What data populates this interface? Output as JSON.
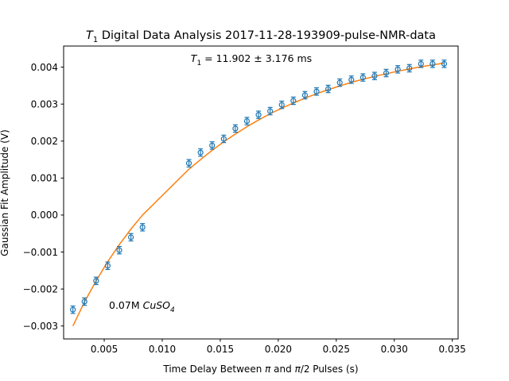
{
  "chart_data": {
    "type": "scatter",
    "title_prefix": "T",
    "title_sub": "1",
    "title_rest": " Digital Data Analysis 2017-11-28-193909-pulse-NMR-data",
    "xlabel_parts": [
      "Time Delay Between ",
      "π",
      " and ",
      "π",
      "/2 Pulses (s)"
    ],
    "ylabel": "Gaussian Fit Amplitude (V)",
    "xlim": [
      0.0015,
      0.0355
    ],
    "ylim": [
      -0.00335,
      0.00457
    ],
    "xticks": [
      0.005,
      0.01,
      0.015,
      0.02,
      0.025,
      0.03,
      0.035
    ],
    "xtick_labels": [
      "0.005",
      "0.010",
      "0.015",
      "0.020",
      "0.025",
      "0.030",
      "0.035"
    ],
    "yticks": [
      -0.003,
      -0.002,
      -0.001,
      0.0,
      0.001,
      0.002,
      0.003,
      0.004
    ],
    "ytick_labels": [
      "−0.003",
      "−0.002",
      "−0.001",
      "0.000",
      "0.001",
      "0.002",
      "0.003",
      "0.004"
    ],
    "grid": false,
    "annotations": {
      "t1_prefix": "T",
      "t1_sub": "1",
      "t1_rest": " = 11.902 ± 3.176 ms",
      "sample_prefix": "0.07M ",
      "sample_formula": "CuSO",
      "sample_sub": "4"
    },
    "colors": {
      "data": "#1f77b4",
      "fit": "#ff7f0e"
    },
    "series": [
      {
        "kind": "errorbar",
        "x": [
          0.0023,
          0.0033,
          0.0043,
          0.0053,
          0.0063,
          0.0073,
          0.0083,
          0.0123,
          0.0133,
          0.0143,
          0.0153,
          0.0163,
          0.0173,
          0.0183,
          0.0193,
          0.0203,
          0.0213,
          0.0223,
          0.0233,
          0.0243,
          0.0253,
          0.0263,
          0.0273,
          0.0283,
          0.0293,
          0.0303,
          0.0313,
          0.0323,
          0.0333,
          0.0343
        ],
        "y": [
          -0.00256,
          -0.00234,
          -0.00178,
          -0.00137,
          -0.00095,
          -0.0006,
          -0.00033,
          0.0014,
          0.00169,
          0.00188,
          0.00206,
          0.00234,
          0.00254,
          0.00271,
          0.00281,
          0.00298,
          0.00309,
          0.00324,
          0.00334,
          0.00341,
          0.00358,
          0.00366,
          0.00372,
          0.00376,
          0.00384,
          0.00394,
          0.00397,
          0.00409,
          0.00409,
          0.00409
        ],
        "yerr": 0.0001
      },
      {
        "kind": "fit",
        "x": [
          0.0023,
          0.0033,
          0.0043,
          0.0053,
          0.0063,
          0.0073,
          0.0083,
          0.0123,
          0.0133,
          0.0143,
          0.0153,
          0.0163,
          0.0173,
          0.0183,
          0.0193,
          0.0203,
          0.0213,
          0.0223,
          0.0233,
          0.0243,
          0.0253,
          0.0263,
          0.0273,
          0.0283,
          0.0293,
          0.0303,
          0.0313,
          0.0323,
          0.0333,
          0.0343
        ],
        "y": [
          -0.003,
          -0.00235,
          -0.00178,
          -0.00126,
          -0.0008,
          -0.00038,
          0.0,
          0.00124,
          0.0015,
          0.00175,
          0.00198,
          0.00219,
          0.00239,
          0.00257,
          0.00274,
          0.00289,
          0.00303,
          0.00316,
          0.00328,
          0.00339,
          0.00349,
          0.00359,
          0.00367,
          0.00375,
          0.00382,
          0.00389,
          0.00395,
          0.00401,
          0.00406,
          0.00411
        ]
      }
    ]
  }
}
